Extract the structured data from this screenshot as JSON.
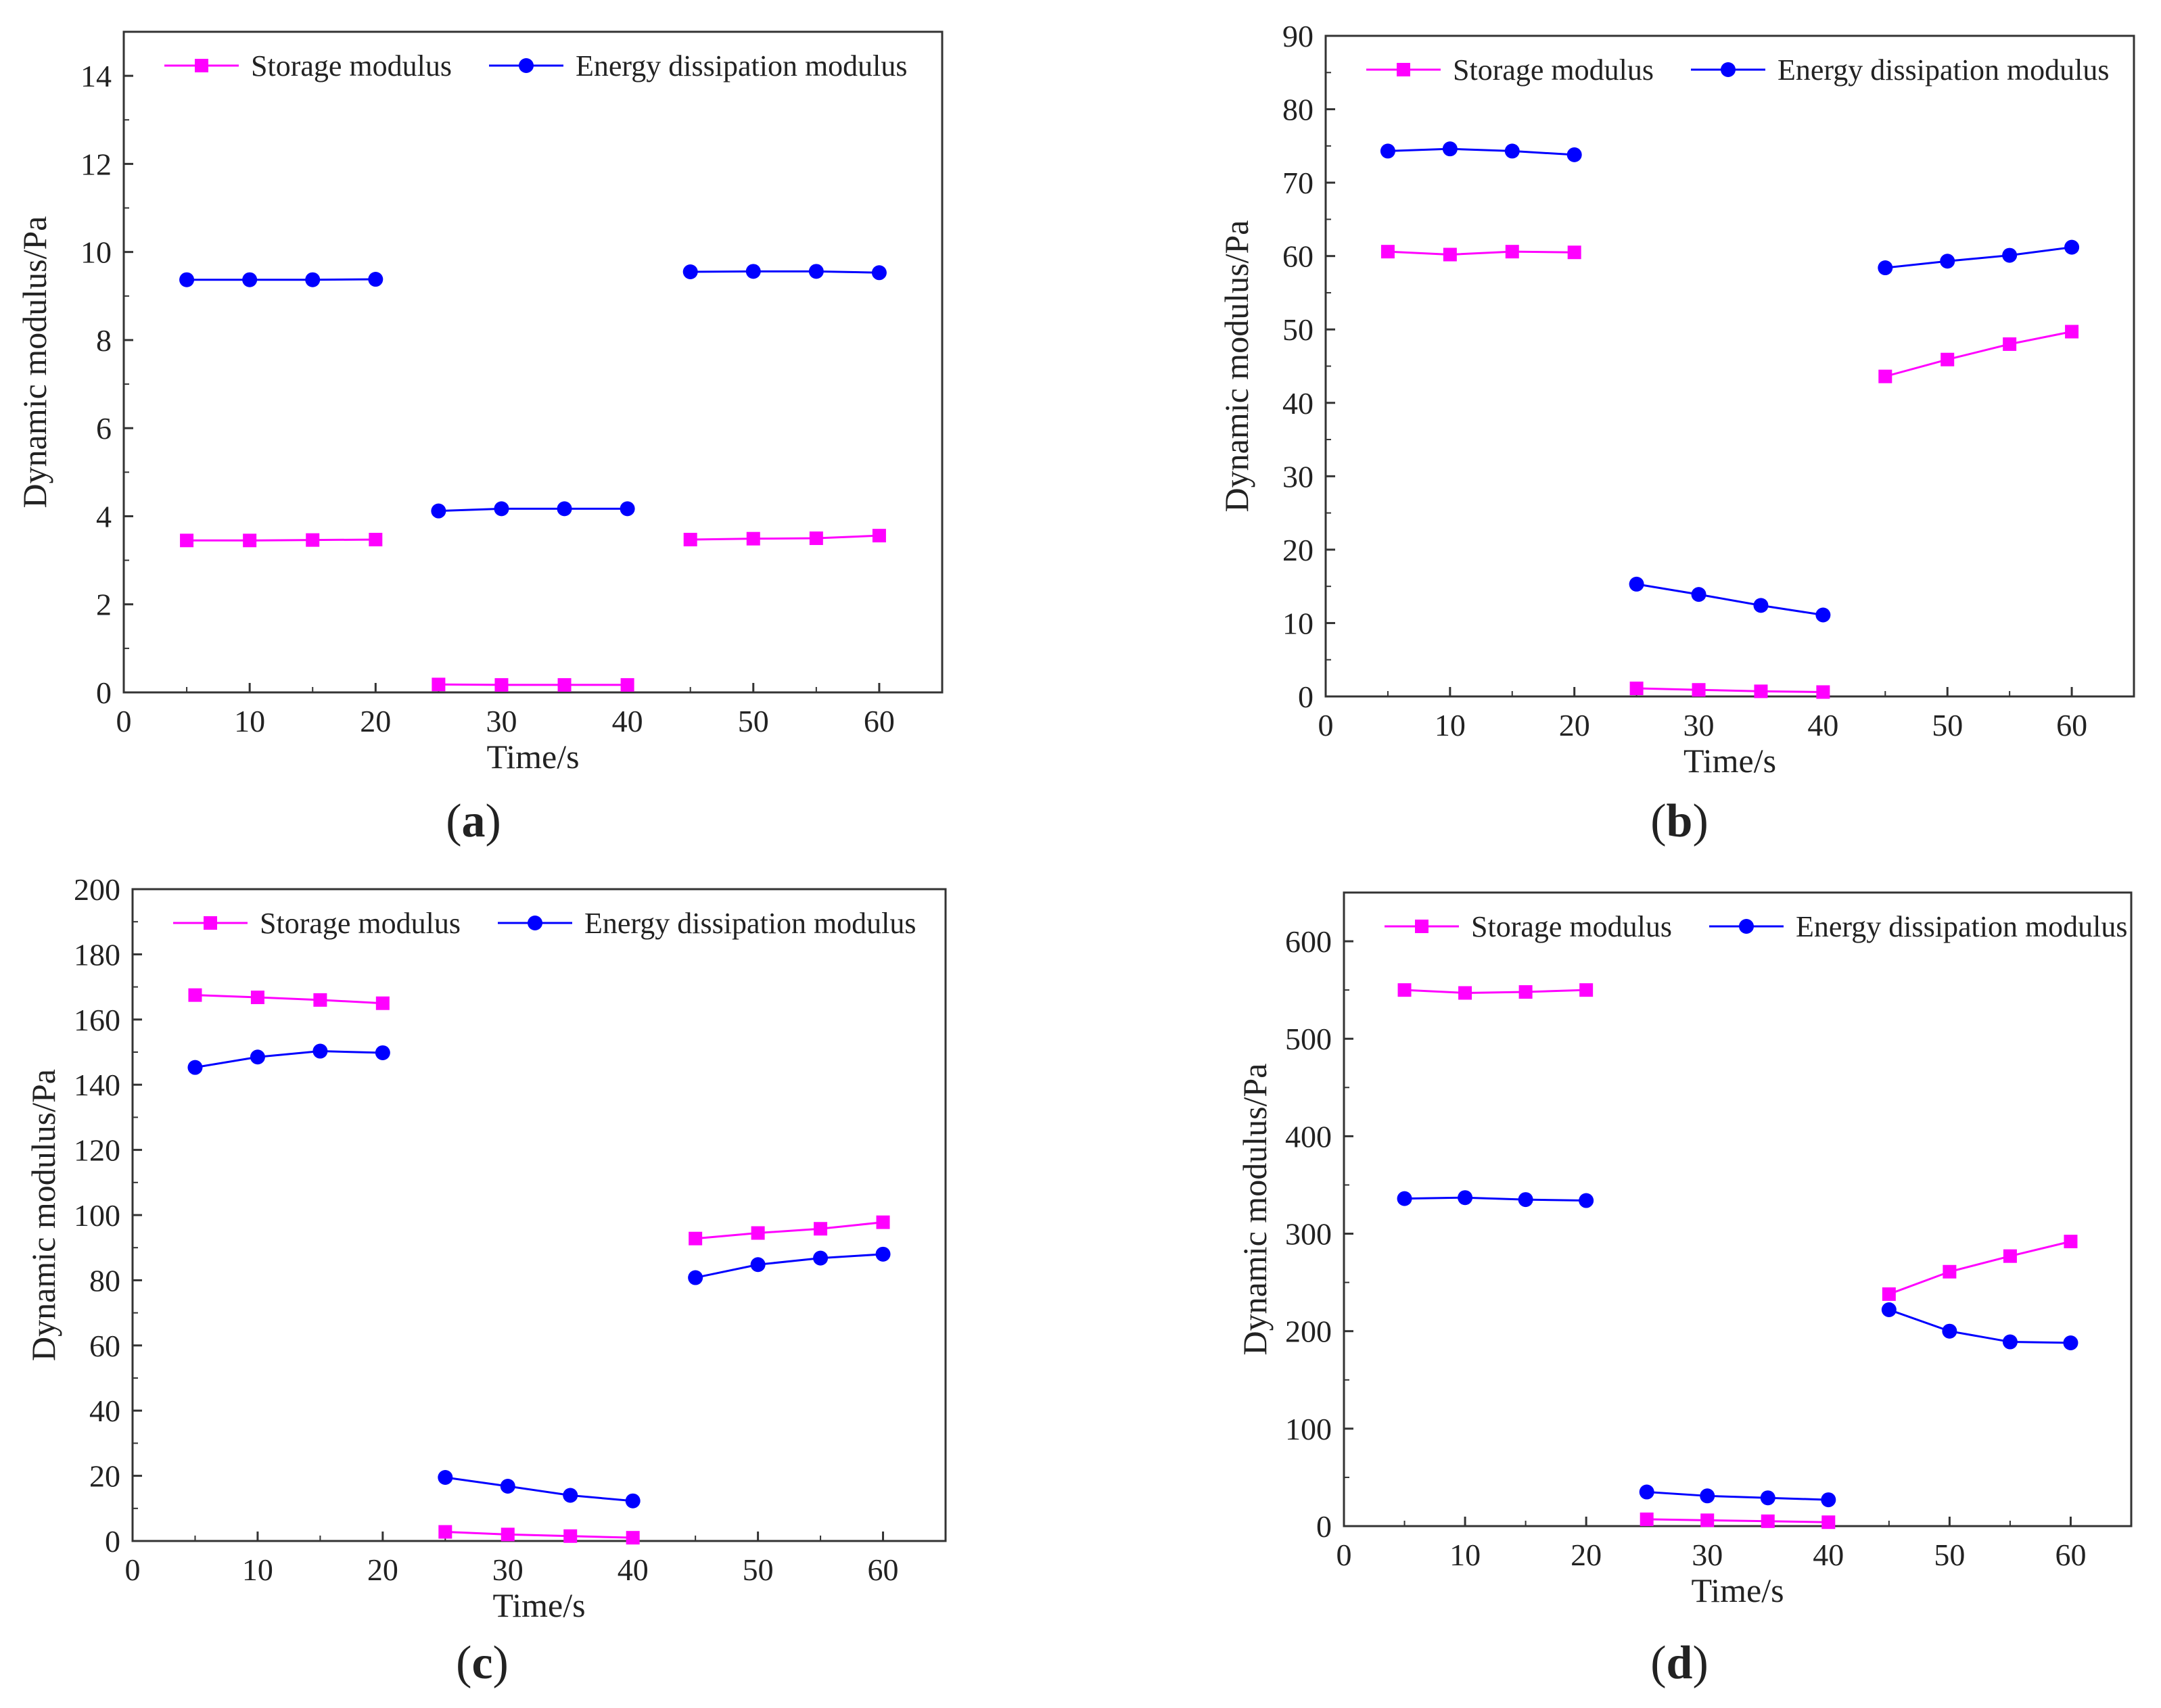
{
  "figure": {
    "colors": {
      "storage": "#ff00ff",
      "dissipation": "#0000ff",
      "axis": "#333333"
    }
  },
  "chart_data": [
    {
      "id": "a",
      "type": "line",
      "caption": {
        "open": "(",
        "letter": "a",
        "close": ")"
      },
      "xlabel": "Time/s",
      "ylabel": "Dynamic modulus/Pa",
      "xlim": [
        0,
        65
      ],
      "ylim": [
        0,
        15
      ],
      "xticks": [
        0,
        10,
        20,
        30,
        40,
        50,
        60
      ],
      "xtick_labels": [
        "0",
        "10",
        "20",
        "30",
        "40",
        "50",
        "60"
      ],
      "yticks": [
        0,
        2,
        4,
        6,
        8,
        10,
        12,
        14
      ],
      "ytick_labels": [
        "0",
        "2",
        "4",
        "6",
        "8",
        "10",
        "12",
        "14"
      ],
      "legend_position": "top",
      "series": [
        {
          "name": "Storage modulus",
          "marker": "square",
          "color": "#ff00ff",
          "segments": [
            {
              "x": [
                5,
                10,
                15,
                20
              ],
              "y": [
                3.45,
                3.45,
                3.46,
                3.47
              ]
            },
            {
              "x": [
                25,
                30,
                35,
                40
              ],
              "y": [
                0.18,
                0.17,
                0.17,
                0.17
              ]
            },
            {
              "x": [
                45,
                50,
                55,
                60
              ],
              "y": [
                3.47,
                3.49,
                3.5,
                3.56
              ]
            }
          ]
        },
        {
          "name": "Energy dissipation modulus",
          "marker": "circle",
          "color": "#0000ff",
          "segments": [
            {
              "x": [
                5,
                10,
                15,
                20
              ],
              "y": [
                9.37,
                9.37,
                9.37,
                9.38
              ]
            },
            {
              "x": [
                25,
                30,
                35,
                40
              ],
              "y": [
                4.12,
                4.17,
                4.17,
                4.17
              ]
            },
            {
              "x": [
                45,
                50,
                55,
                60
              ],
              "y": [
                9.55,
                9.56,
                9.56,
                9.53
              ]
            }
          ]
        }
      ]
    },
    {
      "id": "b",
      "type": "line",
      "caption": {
        "open": "(",
        "letter": "b",
        "close": ")"
      },
      "xlabel": "Time/s",
      "ylabel": "Dynamic modulus/Pa",
      "xlim": [
        0,
        65
      ],
      "ylim": [
        0,
        90
      ],
      "xticks": [
        0,
        10,
        20,
        30,
        40,
        50,
        60
      ],
      "xtick_labels": [
        "0",
        "10",
        "20",
        "30",
        "40",
        "50",
        "60"
      ],
      "yticks": [
        0,
        10,
        20,
        30,
        40,
        50,
        60,
        70,
        80,
        90
      ],
      "ytick_labels": [
        "0",
        "10",
        "20",
        "30",
        "40",
        "50",
        "60",
        "70",
        "80",
        "90"
      ],
      "legend_position": "top",
      "series": [
        {
          "name": "Storage modulus",
          "marker": "square",
          "color": "#ff00ff",
          "segments": [
            {
              "x": [
                5,
                10,
                15,
                20
              ],
              "y": [
                60.6,
                60.2,
                60.6,
                60.5
              ]
            },
            {
              "x": [
                25,
                30,
                35,
                40
              ],
              "y": [
                1.1,
                0.9,
                0.7,
                0.6
              ]
            },
            {
              "x": [
                45,
                50,
                55,
                60
              ],
              "y": [
                43.6,
                45.9,
                48.0,
                49.7
              ]
            }
          ]
        },
        {
          "name": "Energy dissipation modulus",
          "marker": "circle",
          "color": "#0000ff",
          "segments": [
            {
              "x": [
                5,
                10,
                15,
                20
              ],
              "y": [
                74.3,
                74.6,
                74.3,
                73.8
              ]
            },
            {
              "x": [
                25,
                30,
                35,
                40
              ],
              "y": [
                15.3,
                13.9,
                12.4,
                11.1
              ]
            },
            {
              "x": [
                45,
                50,
                55,
                60
              ],
              "y": [
                58.4,
                59.3,
                60.1,
                61.2
              ]
            }
          ]
        }
      ]
    },
    {
      "id": "c",
      "type": "line",
      "caption": {
        "open": "(",
        "letter": "c",
        "close": ")"
      },
      "xlabel": "Time/s",
      "ylabel": "Dynamic modulus/Pa",
      "xlim": [
        0,
        65
      ],
      "ylim": [
        0,
        200
      ],
      "xticks": [
        0,
        10,
        20,
        30,
        40,
        50,
        60
      ],
      "xtick_labels": [
        "0",
        "10",
        "20",
        "30",
        "40",
        "50",
        "60"
      ],
      "yticks": [
        0,
        20,
        40,
        60,
        80,
        100,
        120,
        140,
        160,
        180,
        200
      ],
      "ytick_labels": [
        "0",
        "20",
        "40",
        "60",
        "80",
        "100",
        "120",
        "140",
        "160",
        "180",
        "200"
      ],
      "legend_position": "top",
      "series": [
        {
          "name": "Storage modulus",
          "marker": "square",
          "color": "#ff00ff",
          "segments": [
            {
              "x": [
                5,
                10,
                15,
                20
              ],
              "y": [
                167.5,
                166.8,
                166.0,
                165.0
              ]
            },
            {
              "x": [
                25,
                30,
                35,
                40
              ],
              "y": [
                2.8,
                2.0,
                1.5,
                1.0
              ]
            },
            {
              "x": [
                45,
                50,
                55,
                60
              ],
              "y": [
                92.8,
                94.5,
                95.8,
                97.8
              ]
            }
          ]
        },
        {
          "name": "Energy dissipation modulus",
          "marker": "circle",
          "color": "#0000ff",
          "segments": [
            {
              "x": [
                5,
                10,
                15,
                20
              ],
              "y": [
                145.3,
                148.5,
                150.3,
                149.8
              ]
            },
            {
              "x": [
                25,
                30,
                35,
                40
              ],
              "y": [
                19.5,
                16.8,
                14.0,
                12.3
              ]
            },
            {
              "x": [
                45,
                50,
                55,
                60
              ],
              "y": [
                80.8,
                84.8,
                86.8,
                88.0
              ]
            }
          ]
        }
      ]
    },
    {
      "id": "d",
      "type": "line",
      "caption": {
        "open": "(",
        "letter": "d",
        "close": ")"
      },
      "xlabel": "Time/s",
      "ylabel": "Dynamic modulus/Pa",
      "xlim": [
        0,
        65
      ],
      "ylim": [
        0,
        650
      ],
      "xticks": [
        0,
        10,
        20,
        30,
        40,
        50,
        60
      ],
      "xtick_labels": [
        "0",
        "10",
        "20",
        "30",
        "40",
        "50",
        "60"
      ],
      "yticks": [
        0,
        100,
        200,
        300,
        400,
        500,
        600
      ],
      "ytick_labels": [
        "0",
        "100",
        "200",
        "300",
        "400",
        "500",
        "600"
      ],
      "legend_position": "top",
      "series": [
        {
          "name": "Storage modulus",
          "marker": "square",
          "color": "#ff00ff",
          "segments": [
            {
              "x": [
                5,
                10,
                15,
                20
              ],
              "y": [
                550,
                547,
                548,
                550
              ]
            },
            {
              "x": [
                25,
                30,
                35,
                40
              ],
              "y": [
                7,
                6,
                5,
                4
              ]
            },
            {
              "x": [
                45,
                50,
                55,
                60
              ],
              "y": [
                238,
                261,
                277,
                292
              ]
            }
          ]
        },
        {
          "name": "Energy dissipation modulus",
          "marker": "circle",
          "color": "#0000ff",
          "segments": [
            {
              "x": [
                5,
                10,
                15,
                20
              ],
              "y": [
                336,
                337,
                335,
                334
              ]
            },
            {
              "x": [
                25,
                30,
                35,
                40
              ],
              "y": [
                35,
                31,
                29,
                27
              ]
            },
            {
              "x": [
                45,
                50,
                55,
                60
              ],
              "y": [
                222,
                200,
                189,
                188
              ]
            }
          ]
        }
      ]
    }
  ]
}
